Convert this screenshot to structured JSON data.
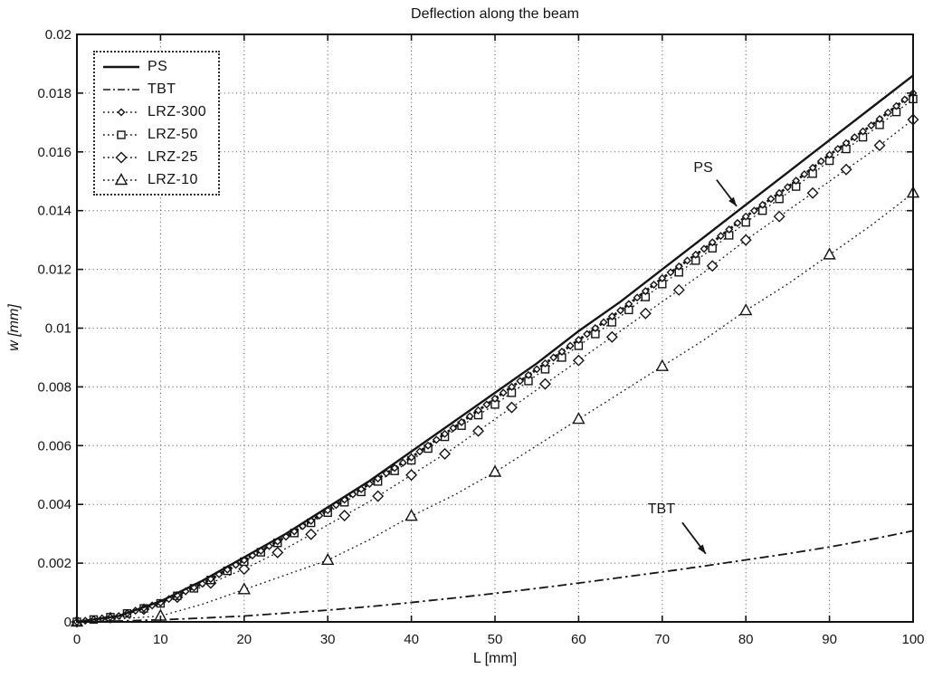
{
  "chart_data": {
    "type": "line",
    "title": "Deflection along the beam",
    "xlabel": "L [mm]",
    "ylabel": "w [mm]",
    "xlim": [
      0,
      100
    ],
    "ylim": [
      0,
      0.02
    ],
    "xticks": [
      0,
      10,
      20,
      30,
      40,
      50,
      60,
      70,
      80,
      90,
      100
    ],
    "yticks": [
      0,
      0.002,
      0.004,
      0.006,
      0.008,
      0.01,
      0.012,
      0.014,
      0.016,
      0.018,
      0.02
    ],
    "ytick_labels": [
      "0",
      "0.002",
      "0.004",
      "0.006",
      "0.008",
      "0.01",
      "0.012",
      "0.014",
      "0.016",
      "0.018",
      "0.02"
    ],
    "grid": true,
    "legend_position": "top-left",
    "line_color": "#151515",
    "background_color": "#ffffff",
    "x": [
      0,
      5,
      10,
      15,
      20,
      25,
      30,
      35,
      40,
      45,
      50,
      55,
      60,
      65,
      70,
      75,
      80,
      85,
      90,
      95,
      100
    ],
    "series": [
      {
        "name": "PS",
        "style": "solid",
        "marker": "none",
        "values": [
          0,
          0.0002,
          0.0007,
          0.0014,
          0.0022,
          0.003,
          0.0039,
          0.0048,
          0.0058,
          0.0068,
          0.0078,
          0.0088,
          0.0099,
          0.0109,
          0.012,
          0.0131,
          0.0142,
          0.0153,
          0.0164,
          0.0175,
          0.0186
        ]
      },
      {
        "name": "TBT",
        "style": "dashdot",
        "marker": "none",
        "values": [
          0,
          3e-05,
          7e-05,
          0.00013,
          0.0002,
          0.0003,
          0.0004,
          0.00052,
          0.00066,
          0.00081,
          0.00097,
          0.00114,
          0.00132,
          0.00151,
          0.0017,
          0.0019,
          0.00211,
          0.00232,
          0.00255,
          0.00281,
          0.0031
        ]
      },
      {
        "name": "LRZ-300",
        "style": "dotted",
        "marker": "diamond-small",
        "marker_step_mm": 1,
        "values": [
          0,
          0.0002,
          0.00065,
          0.0013,
          0.0021,
          0.0029,
          0.0038,
          0.0047,
          0.0056,
          0.0066,
          0.0076,
          0.0086,
          0.0096,
          0.0106,
          0.0117,
          0.0127,
          0.0138,
          0.0148,
          0.0159,
          0.0169,
          0.018
        ]
      },
      {
        "name": "LRZ-50",
        "style": "dotted",
        "marker": "square",
        "marker_step_mm": 2,
        "values": [
          0,
          0.0002,
          0.00063,
          0.00127,
          0.00205,
          0.00285,
          0.00372,
          0.0046,
          0.0055,
          0.0065,
          0.0074,
          0.0084,
          0.0094,
          0.0104,
          0.0115,
          0.0125,
          0.0136,
          0.0146,
          0.0157,
          0.0167,
          0.0178
        ]
      },
      {
        "name": "LRZ-25",
        "style": "dotted",
        "marker": "diamond",
        "marker_step_mm": 4,
        "values": [
          0,
          0.00018,
          0.0006,
          0.0012,
          0.0018,
          0.0025,
          0.0033,
          0.0041,
          0.005,
          0.0059,
          0.0069,
          0.0079,
          0.0089,
          0.0099,
          0.0109,
          0.0119,
          0.013,
          0.014,
          0.015,
          0.016,
          0.0171
        ]
      },
      {
        "name": "LRZ-10",
        "style": "dotted",
        "marker": "triangle",
        "marker_step_mm": 10,
        "values": [
          0,
          0.0001,
          0.0002,
          0.0006,
          0.0011,
          0.0016,
          0.0021,
          0.0028,
          0.0036,
          0.0043,
          0.0051,
          0.006,
          0.0069,
          0.0078,
          0.0087,
          0.0096,
          0.0106,
          0.0115,
          0.0125,
          0.0135,
          0.0146
        ]
      }
    ],
    "annotations": [
      {
        "text": "PS",
        "text_x": 74.9,
        "text_y": 0.01547,
        "tail_x": 76.5,
        "tail_y": 0.01505,
        "tip_x": 78.9,
        "tip_y": 0.01415
      },
      {
        "text": "TBT",
        "text_x": 69.9,
        "text_y": 0.00385,
        "tail_x": 72.4,
        "tail_y": 0.00338,
        "tip_x": 75.2,
        "tip_y": 0.00232
      }
    ]
  }
}
